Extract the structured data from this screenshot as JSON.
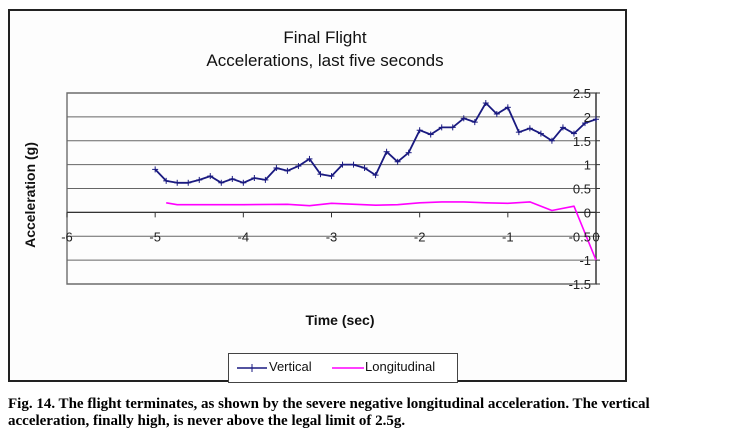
{
  "chart_data": {
    "type": "line",
    "title": "Final Flight",
    "subtitle": "Accelerations, last five seconds",
    "xlabel": "Time (sec)",
    "ylabel": "Acceleration (g)",
    "xlim": [
      -6,
      0
    ],
    "ylim": [
      -1.5,
      2.5
    ],
    "x_ticks": [
      -6,
      -5,
      -4,
      -3,
      -2,
      -1,
      0
    ],
    "x_tick_labels": [
      "-6",
      "-5",
      "-4",
      "-3",
      "-2",
      "-1",
      "0"
    ],
    "y_ticks": [
      2.5,
      2,
      1.5,
      1,
      0.5,
      0,
      -0.5,
      -1,
      -1.5
    ],
    "y_tick_labels": [
      "2.5",
      "2",
      "1.5",
      "1",
      "0.5",
      "0",
      "-0.5",
      "-1",
      "-1.5"
    ],
    "grid": true,
    "legend_position": "bottom",
    "series": [
      {
        "name": "Vertical",
        "color": "#1a1a80",
        "marker": "plus",
        "x": [
          -5.0,
          -4.875,
          -4.75,
          -4.625,
          -4.5,
          -4.375,
          -4.25,
          -4.125,
          -4.0,
          -3.875,
          -3.75,
          -3.625,
          -3.5,
          -3.375,
          -3.25,
          -3.125,
          -3.0,
          -2.875,
          -2.75,
          -2.625,
          -2.5,
          -2.375,
          -2.25,
          -2.125,
          -2.0,
          -1.875,
          -1.75,
          -1.625,
          -1.5,
          -1.375,
          -1.25,
          -1.125,
          -1.0,
          -0.875,
          -0.75,
          -0.625,
          -0.5,
          -0.375,
          -0.25,
          -0.125,
          0.0
        ],
        "values": [
          0.9,
          0.66,
          0.62,
          0.62,
          0.68,
          0.76,
          0.62,
          0.7,
          0.62,
          0.72,
          0.68,
          0.93,
          0.87,
          0.97,
          1.12,
          0.8,
          0.76,
          1.0,
          1.0,
          0.93,
          0.78,
          1.27,
          1.06,
          1.25,
          1.72,
          1.63,
          1.78,
          1.78,
          1.97,
          1.89,
          2.29,
          2.06,
          2.2,
          1.68,
          1.76,
          1.65,
          1.5,
          1.78,
          1.65,
          1.87,
          1.95
        ]
      },
      {
        "name": "Longitudinal",
        "color": "#ff00ff",
        "marker": "none",
        "x": [
          -4.875,
          -4.75,
          -4.5,
          -4.0,
          -3.5,
          -3.25,
          -3.0,
          -2.5,
          -2.25,
          -2.0,
          -1.75,
          -1.5,
          -1.25,
          -1.0,
          -0.75,
          -0.5,
          -0.25,
          0.0
        ],
        "values": [
          0.2,
          0.16,
          0.16,
          0.16,
          0.17,
          0.14,
          0.19,
          0.15,
          0.16,
          0.2,
          0.22,
          0.22,
          0.2,
          0.19,
          0.22,
          0.04,
          0.13,
          -1.0
        ]
      }
    ]
  },
  "caption": "Fig. 14.  The flight terminates, as shown by the severe negative longitudinal acceleration. The vertical acceleration, finally high, is never above the legal limit of 2.5g."
}
